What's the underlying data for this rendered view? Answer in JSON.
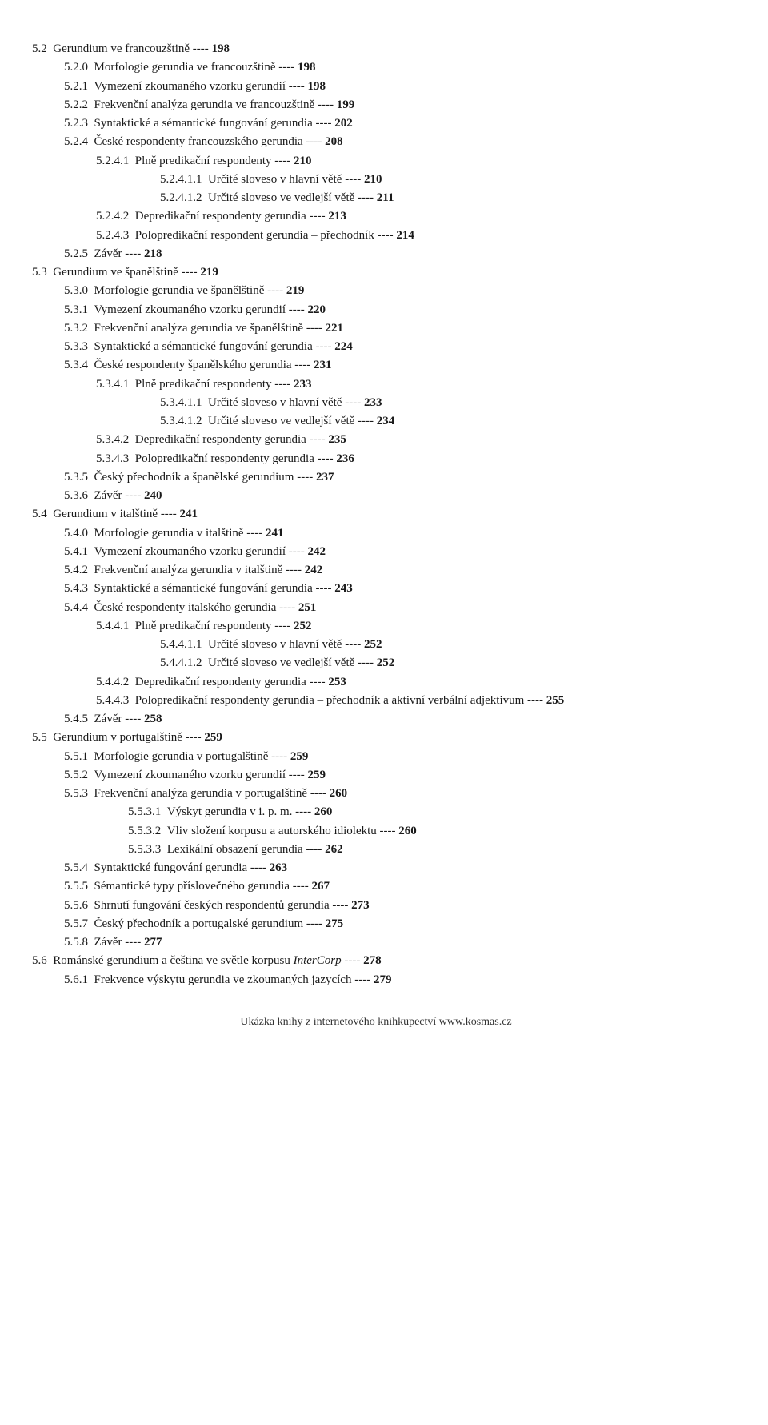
{
  "dashes": " ---- ",
  "footer": "Ukázka knihy z internetového knihkupectví www.kosmas.cz",
  "entries": [
    {
      "lvl": 0,
      "num": "5.2",
      "title": "Gerundium ve francouzštině",
      "page": "198"
    },
    {
      "lvl": 1,
      "num": "5.2.0",
      "title": "Morfologie gerundia ve francouzštině",
      "page": "198"
    },
    {
      "lvl": 1,
      "num": "5.2.1",
      "title": "Vymezení zkoumaného vzorku gerundií",
      "page": "198"
    },
    {
      "lvl": 1,
      "num": "5.2.2",
      "title": "Frekvenční analýza gerundia ve francouzštině",
      "page": "199"
    },
    {
      "lvl": 1,
      "num": "5.2.3",
      "title": "Syntaktické a sémantické fungování gerundia",
      "page": "202"
    },
    {
      "lvl": 1,
      "num": "5.2.4",
      "title": "České respondenty francouzského gerundia",
      "page": "208"
    },
    {
      "lvl": 2,
      "num": "5.2.4.1",
      "title": "Plně predikační respondenty",
      "page": "210"
    },
    {
      "lvl": 3,
      "num": "5.2.4.1.1",
      "title": "Určité sloveso v hlavní větě",
      "page": "210"
    },
    {
      "lvl": 3,
      "num": "5.2.4.1.2",
      "title": "Určité sloveso ve vedlejší větě",
      "page": "211"
    },
    {
      "lvl": 2,
      "num": "5.2.4.2",
      "title": "Depredikační respondenty gerundia",
      "page": "213"
    },
    {
      "lvl": 2,
      "num": "5.2.4.3",
      "title": "Polopredikační respondent gerundia – přechodník",
      "page": "214"
    },
    {
      "lvl": 1,
      "num": "5.2.5",
      "title": "Závěr",
      "page": "218"
    },
    {
      "lvl": 0,
      "num": "5.3",
      "title": "Gerundium ve španělštině",
      "page": "219"
    },
    {
      "lvl": 1,
      "num": "5.3.0",
      "title": "Morfologie gerundia ve španělštině",
      "page": "219"
    },
    {
      "lvl": 1,
      "num": "5.3.1",
      "title": "Vymezení zkoumaného vzorku gerundií",
      "page": "220"
    },
    {
      "lvl": 1,
      "num": "5.3.2",
      "title": "Frekvenční analýza gerundia ve španělštině",
      "page": "221"
    },
    {
      "lvl": 1,
      "num": "5.3.3",
      "title": "Syntaktické a sémantické fungování gerundia",
      "page": "224"
    },
    {
      "lvl": 1,
      "num": "5.3.4",
      "title": "České respondenty španělského gerundia",
      "page": "231"
    },
    {
      "lvl": 2,
      "num": "5.3.4.1",
      "title": "Plně predikační respondenty",
      "page": "233"
    },
    {
      "lvl": 3,
      "num": "5.3.4.1.1",
      "title": "Určité sloveso v hlavní větě",
      "page": "233"
    },
    {
      "lvl": 3,
      "num": "5.3.4.1.2",
      "title": "Určité sloveso ve vedlejší větě",
      "page": "234"
    },
    {
      "lvl": 2,
      "num": "5.3.4.2",
      "title": "Depredikační respondenty gerundia",
      "page": "235"
    },
    {
      "lvl": 2,
      "num": "5.3.4.3",
      "title": "Polopredikační respondenty gerundia",
      "page": "236"
    },
    {
      "lvl": 1,
      "num": "5.3.5",
      "title": "Český přechodník a španělské gerundium",
      "page": "237"
    },
    {
      "lvl": 1,
      "num": "5.3.6",
      "title": "Závěr",
      "page": "240"
    },
    {
      "lvl": 0,
      "num": "5.4",
      "title": "Gerundium v italštině",
      "page": "241"
    },
    {
      "lvl": 1,
      "num": "5.4.0",
      "title": "Morfologie gerundia v italštině",
      "page": "241"
    },
    {
      "lvl": 1,
      "num": "5.4.1",
      "title": "Vymezení zkoumaného vzorku gerundií",
      "page": "242"
    },
    {
      "lvl": 1,
      "num": "5.4.2",
      "title": "Frekvenční analýza gerundia v italštině",
      "page": "242"
    },
    {
      "lvl": 1,
      "num": "5.4.3",
      "title": "Syntaktické a sémantické fungování gerundia",
      "page": "243"
    },
    {
      "lvl": 1,
      "num": "5.4.4",
      "title": "České respondenty italského gerundia",
      "page": "251"
    },
    {
      "lvl": 2,
      "num": "5.4.4.1",
      "title": "Plně predikační respondenty",
      "page": "252"
    },
    {
      "lvl": 3,
      "num": "5.4.4.1.1",
      "title": "Určité sloveso v hlavní větě",
      "page": "252"
    },
    {
      "lvl": 3,
      "num": "5.4.4.1.2",
      "title": "Určité sloveso ve vedlejší větě",
      "page": "252"
    },
    {
      "lvl": 2,
      "num": "5.4.4.2",
      "title": "Depredikační respondenty gerundia",
      "page": "253"
    },
    {
      "lvl": 2,
      "num": "5.4.4.3",
      "title": "Polopredikační respondenty gerundia – přechodník a aktivní verbální adjektivum",
      "page": "255",
      "wrap": true
    },
    {
      "lvl": 1,
      "num": "5.4.5",
      "title": "Závěr",
      "page": "258"
    },
    {
      "lvl": 0,
      "num": "5.5",
      "title": "Gerundium v portugalštině",
      "page": "259"
    },
    {
      "lvl": 1,
      "num": "5.5.1",
      "title": "Morfologie gerundia v portugalštině",
      "page": "259"
    },
    {
      "lvl": 1,
      "num": "5.5.2",
      "title": "Vymezení zkoumaného vzorku gerundií",
      "page": "259"
    },
    {
      "lvl": 1,
      "num": "5.5.3",
      "title": "Frekvenční analýza gerundia v portugalštině",
      "page": "260"
    },
    {
      "lvl": "3b",
      "num": "5.5.3.1",
      "title": "Výskyt gerundia v i. p. m.",
      "page": "260"
    },
    {
      "lvl": "3b",
      "num": "5.5.3.2",
      "title": "Vliv složení korpusu a autorského idiolektu",
      "page": "260"
    },
    {
      "lvl": "3b",
      "num": "5.5.3.3",
      "title": "Lexikální obsazení gerundia",
      "page": "262"
    },
    {
      "lvl": 1,
      "num": "5.5.4",
      "title": "Syntaktické fungování gerundia",
      "page": "263"
    },
    {
      "lvl": 1,
      "num": "5.5.5",
      "title": "Sémantické typy příslovečného gerundia",
      "page": "267"
    },
    {
      "lvl": 1,
      "num": "5.5.6",
      "title": "Shrnutí fungování českých respondentů gerundia",
      "page": "273"
    },
    {
      "lvl": 1,
      "num": "5.5.7",
      "title": "Český přechodník a portugalské gerundium",
      "page": "275"
    },
    {
      "lvl": 1,
      "num": "5.5.8",
      "title": "Závěr",
      "page": "277"
    },
    {
      "lvl": 0,
      "num": "5.6",
      "title": "Románské gerundium a čeština ve světle korpusu ",
      "italicPart": "InterCorp",
      "page": "278"
    },
    {
      "lvl": 1,
      "num": "5.6.1",
      "title": "Frekvence výskytu gerundia ve zkoumaných jazycích",
      "page": "279"
    }
  ]
}
